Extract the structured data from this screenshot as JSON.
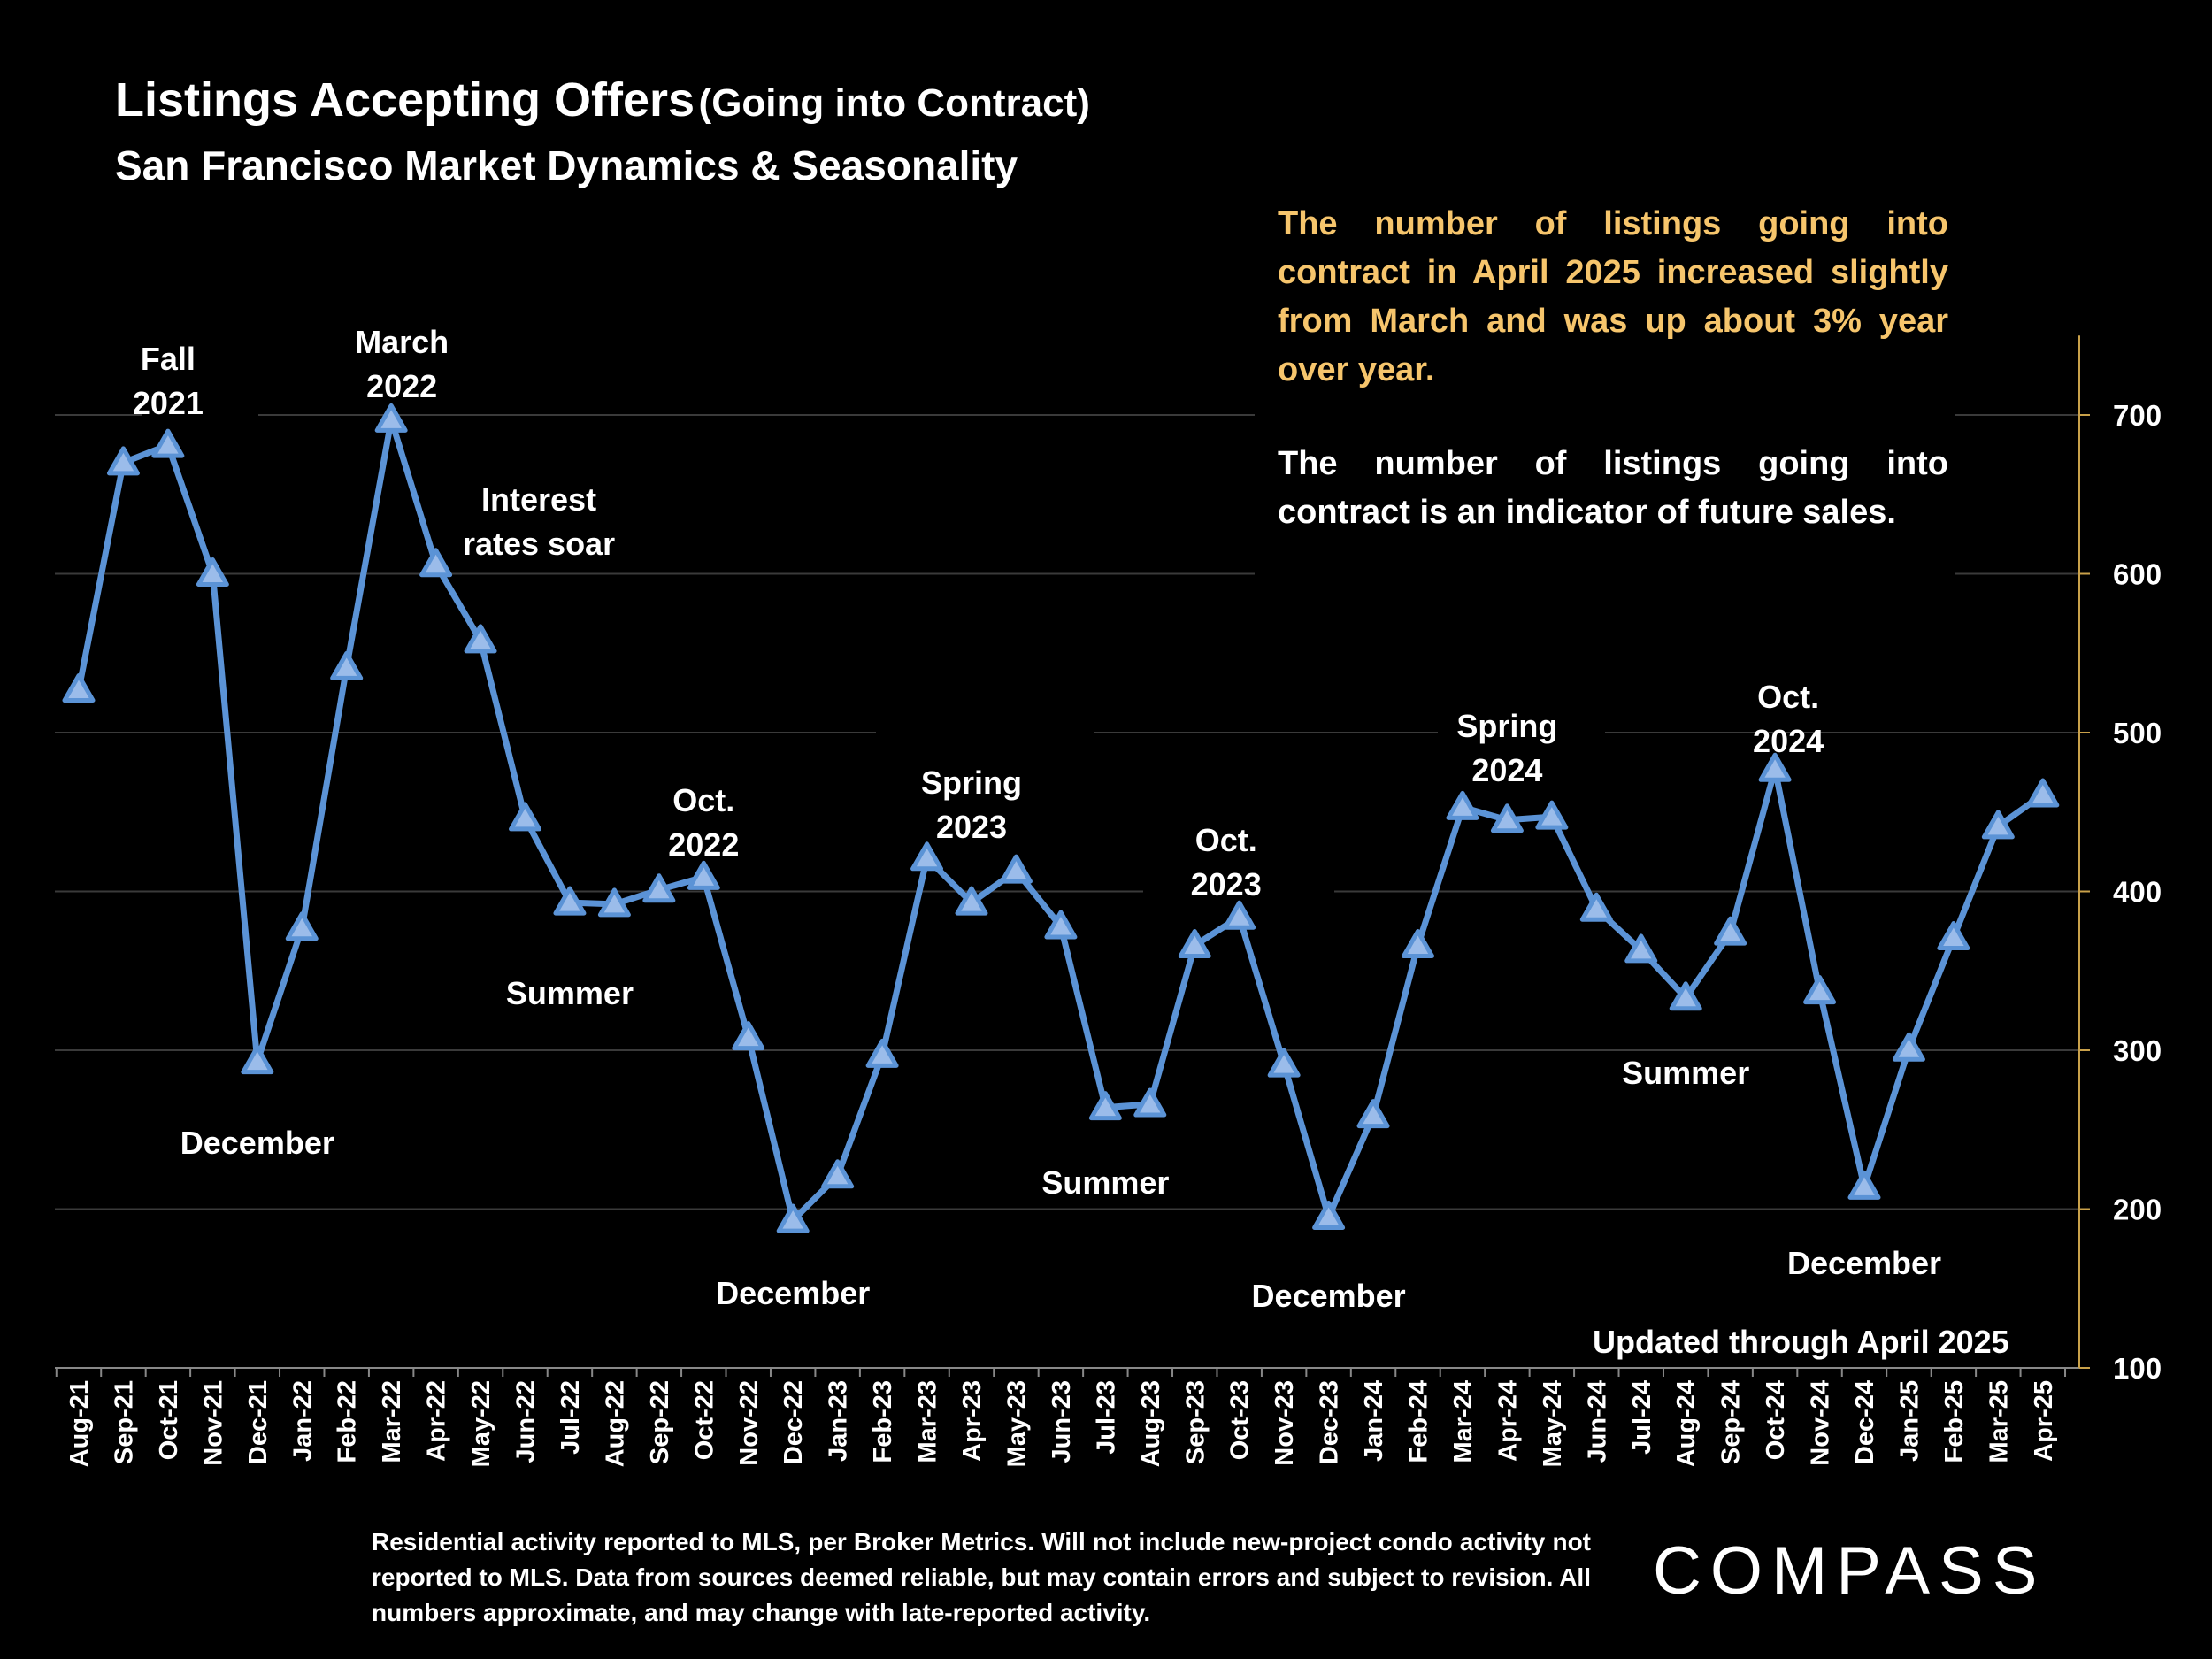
{
  "header": {
    "title": "Listings Accepting Offers",
    "title_paren": "(Going into Contract)",
    "subtitle": "San Francisco Market Dynamics & Seasonality"
  },
  "notes": {
    "yellow": "The number of listings going into contract in April 2025 increased slightly from March and was up about 3% year over year.",
    "white": "The number of listings going into contract is an indicator of future sales."
  },
  "updated": "Updated through April 2025",
  "footnote": "Residential activity reported to MLS, per Broker Metrics. Will not include new-project condo activity not reported to MLS. Data from sources deemed reliable, but may contain errors and subject to revision. All numbers approximate, and may change with late-reported activity.",
  "logo": "COMPASS",
  "colors": {
    "background": "#000000",
    "line": "#5b93d6",
    "marker_fill": "#9bbcea",
    "highlight_text": "#f6c56c",
    "axis": "#c9a14a",
    "grid": "#3a3a3a"
  },
  "chart_data": {
    "type": "line",
    "categories": [
      "Aug-21",
      "Sep-21",
      "Oct-21",
      "Nov-21",
      "Dec-21",
      "Jan-22",
      "Feb-22",
      "Mar-22",
      "Apr-22",
      "May-22",
      "Jun-22",
      "Jul-22",
      "Aug-22",
      "Sep-22",
      "Oct-22",
      "Nov-22",
      "Dec-22",
      "Jan-23",
      "Feb-23",
      "Mar-23",
      "Apr-23",
      "May-23",
      "Jun-23",
      "Jul-23",
      "Aug-23",
      "Sep-23",
      "Oct-23",
      "Nov-23",
      "Dec-23",
      "Jan-24",
      "Feb-24",
      "Mar-24",
      "Apr-24",
      "May-24",
      "Jun-24",
      "Jul-24",
      "Aug-24",
      "Sep-24",
      "Oct-24",
      "Nov-24",
      "Dec-24",
      "Jan-25",
      "Feb-25",
      "Mar-25",
      "Apr-25"
    ],
    "series": [
      {
        "values": [
          527,
          670,
          681,
          600,
          293,
          377,
          541,
          697,
          606,
          558,
          446,
          393,
          392,
          401,
          409,
          308,
          193,
          221,
          297,
          421,
          393,
          413,
          378,
          264,
          266,
          366,
          384,
          291,
          195,
          259,
          366,
          453,
          445,
          447,
          389,
          363,
          333,
          374,
          477,
          337,
          214,
          301,
          371,
          441,
          461
        ],
        "marker": "triangle"
      }
    ],
    "ylim": [
      100,
      750
    ],
    "yticks": [
      100,
      200,
      300,
      400,
      500,
      600,
      700
    ],
    "y_axis_side": "right",
    "grid": true,
    "annotations": [
      {
        "lines": [
          "Fall",
          "2021"
        ],
        "anchor": 2
      },
      {
        "lines": [
          "March",
          "2022"
        ],
        "anchor": 7
      },
      {
        "lines": [
          "Interest",
          "rates soar"
        ],
        "anchor": 9
      },
      {
        "lines": [
          "December"
        ],
        "anchor": 4
      },
      {
        "lines": [
          "Summer"
        ],
        "anchor": 11
      },
      {
        "lines": [
          "Oct.",
          "2022"
        ],
        "anchor": 14
      },
      {
        "lines": [
          "December"
        ],
        "anchor": 16
      },
      {
        "lines": [
          "Spring",
          "2023"
        ],
        "anchor": 20
      },
      {
        "lines": [
          "Summer"
        ],
        "anchor": 23
      },
      {
        "lines": [
          "Oct.",
          "2023"
        ],
        "anchor": 26
      },
      {
        "lines": [
          "December"
        ],
        "anchor": 28
      },
      {
        "lines": [
          "Spring",
          "2024"
        ],
        "anchor": 32
      },
      {
        "lines": [
          "Summer"
        ],
        "anchor": 36
      },
      {
        "lines": [
          "Oct.",
          "2024"
        ],
        "anchor": 38
      },
      {
        "lines": [
          "December"
        ],
        "anchor": 40
      }
    ]
  }
}
